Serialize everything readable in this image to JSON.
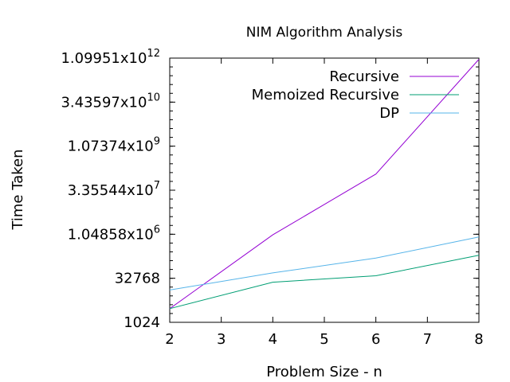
{
  "chart_data": {
    "type": "line",
    "title": "NIM Algorithm Analysis",
    "xlabel": "Problem Size - n",
    "ylabel": "Time Taken",
    "y_scale": "log2",
    "xlim": [
      2,
      8
    ],
    "ylim": [
      1024,
      1099511627776
    ],
    "x_ticks": [
      "2",
      "3",
      "4",
      "5",
      "6",
      "7",
      "8"
    ],
    "y_ticks": [
      {
        "value": 1024,
        "mantissa": "1024",
        "exp": ""
      },
      {
        "value": 32768,
        "mantissa": "32768",
        "exp": ""
      },
      {
        "value": 1048576,
        "mantissa": "1.04858x10",
        "exp": "6"
      },
      {
        "value": 33554432,
        "mantissa": "3.35544x10",
        "exp": "7"
      },
      {
        "value": 1073741824,
        "mantissa": "1.07374x10",
        "exp": "9"
      },
      {
        "value": 34359738368,
        "mantissa": "3.43597x10",
        "exp": "10"
      },
      {
        "value": 1099511627776,
        "mantissa": "1.09951x10",
        "exp": "12"
      }
    ],
    "grid": false,
    "legend_position": "top-right",
    "series": [
      {
        "name": "Recursive",
        "color": "#9400d3",
        "x": [
          2,
          4,
          6,
          8
        ],
        "y": [
          3000,
          1000000,
          120000000,
          1000000000000
        ]
      },
      {
        "name": "Memoized Recursive",
        "color": "#009e73",
        "x": [
          2,
          4,
          6,
          8
        ],
        "y": [
          3000,
          24000,
          40000,
          200000
        ]
      },
      {
        "name": "DP",
        "color": "#56b4e9",
        "x": [
          2,
          4,
          6,
          8
        ],
        "y": [
          13000,
          50000,
          160000,
          850000
        ]
      }
    ]
  }
}
